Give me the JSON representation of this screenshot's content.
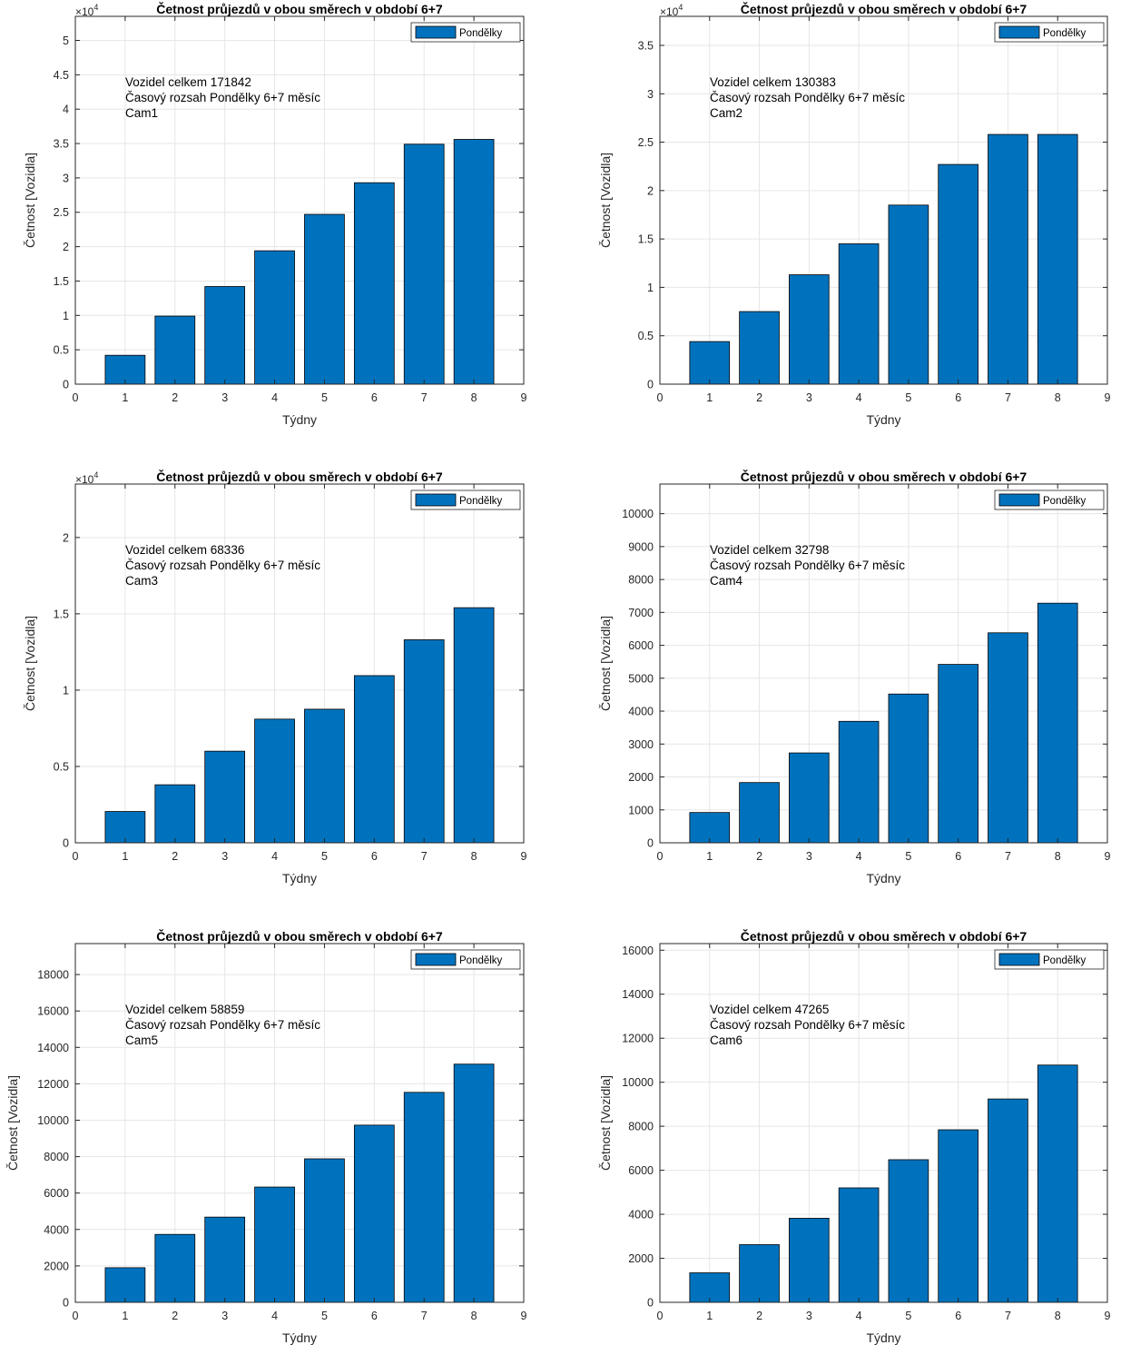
{
  "chart_data": [
    {
      "type": "bar",
      "title": "Četnost průjezdů v obou směrech v období 6+7",
      "xlabel": "Týdny",
      "ylabel": "Četnost [Vozidla]",
      "categories": [
        1,
        2,
        3,
        4,
        5,
        6,
        7,
        8
      ],
      "series": [
        {
          "name": "Pondělky",
          "values": [
            4200,
            9900,
            14200,
            19400,
            24700,
            29300,
            34900,
            35600
          ]
        }
      ],
      "xlim": [
        0,
        9
      ],
      "xticks": [
        0,
        1,
        2,
        3,
        4,
        5,
        6,
        7,
        8,
        9
      ],
      "ylim": [
        0,
        53500
      ],
      "yticks": [
        0,
        5000,
        10000,
        15000,
        20000,
        25000,
        30000,
        35000,
        40000,
        45000,
        50000
      ],
      "ytick_labels": [
        "0",
        "0.5",
        "1",
        "1.5",
        "2",
        "2.5",
        "3",
        "3.5",
        "4",
        "4.5",
        "5"
      ],
      "y_exponent_label": "×10",
      "y_exponent": "4",
      "annotation": [
        "Vozidel celkem 171842",
        "Časový rozsah Pondělky 6+7 měsíc",
        "Cam1"
      ],
      "legend_position": "top-right",
      "grid": true,
      "color": "#0072bd"
    },
    {
      "type": "bar",
      "title": "Četnost průjezdů v obou směrech v období 6+7",
      "xlabel": "Týdny",
      "ylabel": "Četnost [Vozidla]",
      "categories": [
        1,
        2,
        3,
        4,
        5,
        6,
        7,
        8
      ],
      "series": [
        {
          "name": "Pondělky",
          "values": [
            4400,
            7500,
            11300,
            14500,
            18500,
            22700,
            25800,
            25800
          ]
        }
      ],
      "xlim": [
        0,
        9
      ],
      "xticks": [
        0,
        1,
        2,
        3,
        4,
        5,
        6,
        7,
        8,
        9
      ],
      "ylim": [
        0,
        38000
      ],
      "yticks": [
        0,
        5000,
        10000,
        15000,
        20000,
        25000,
        30000,
        35000
      ],
      "ytick_labels": [
        "0",
        "0.5",
        "1",
        "1.5",
        "2",
        "2.5",
        "3",
        "3.5"
      ],
      "y_exponent_label": "×10",
      "y_exponent": "4",
      "annotation": [
        "Vozidel celkem 130383",
        "Časový rozsah Pondělky 6+7 měsíc",
        "Cam2"
      ],
      "legend_position": "top-right",
      "grid": true,
      "color": "#0072bd"
    },
    {
      "type": "bar",
      "title": "Četnost průjezdů v obou směrech v období 6+7",
      "xlabel": "Týdny",
      "ylabel": "Četnost [Vozidla]",
      "categories": [
        1,
        2,
        3,
        4,
        5,
        6,
        7,
        8
      ],
      "series": [
        {
          "name": "Pondělky",
          "values": [
            2050,
            3800,
            6000,
            8100,
            8750,
            10950,
            13300,
            15400
          ]
        }
      ],
      "xlim": [
        0,
        9
      ],
      "xticks": [
        0,
        1,
        2,
        3,
        4,
        5,
        6,
        7,
        8,
        9
      ],
      "ylim": [
        0,
        23500
      ],
      "yticks": [
        0,
        5000,
        10000,
        15000,
        20000
      ],
      "ytick_labels": [
        "0",
        "0.5",
        "1",
        "1.5",
        "2"
      ],
      "y_exponent_label": "×10",
      "y_exponent": "4",
      "annotation": [
        "Vozidel celkem 68336",
        "Časový rozsah Pondělky 6+7 měsíc",
        "Cam3"
      ],
      "legend_position": "top-right",
      "grid": true,
      "color": "#0072bd"
    },
    {
      "type": "bar",
      "title": "Četnost průjezdů v obou směrech v období 6+7",
      "xlabel": "Týdny",
      "ylabel": "Četnost [Vozidla]",
      "categories": [
        1,
        2,
        3,
        4,
        5,
        6,
        7,
        8
      ],
      "series": [
        {
          "name": "Pondělky",
          "values": [
            920,
            1830,
            2730,
            3690,
            4520,
            5420,
            6380,
            7280
          ]
        }
      ],
      "xlim": [
        0,
        9
      ],
      "xticks": [
        0,
        1,
        2,
        3,
        4,
        5,
        6,
        7,
        8,
        9
      ],
      "ylim": [
        0,
        10900
      ],
      "yticks": [
        0,
        1000,
        2000,
        3000,
        4000,
        5000,
        6000,
        7000,
        8000,
        9000,
        10000
      ],
      "ytick_labels": [
        "0",
        "1000",
        "2000",
        "3000",
        "4000",
        "5000",
        "6000",
        "7000",
        "8000",
        "9000",
        "10000"
      ],
      "y_exponent_label": "",
      "y_exponent": "",
      "annotation": [
        "Vozidel celkem 32798",
        "Časový rozsah Pondělky 6+7 měsíc",
        "Cam4"
      ],
      "legend_position": "top-right",
      "grid": true,
      "color": "#0072bd"
    },
    {
      "type": "bar",
      "title": "Četnost průjezdů v obou směrech v období 6+7",
      "xlabel": "Týdny",
      "ylabel": "Četnost [Vozidla]",
      "categories": [
        1,
        2,
        3,
        4,
        5,
        6,
        7,
        8
      ],
      "series": [
        {
          "name": "Pondělky",
          "values": [
            1900,
            3730,
            4680,
            6330,
            7880,
            9730,
            11530,
            13080
          ]
        }
      ],
      "xlim": [
        0,
        9
      ],
      "xticks": [
        0,
        1,
        2,
        3,
        4,
        5,
        6,
        7,
        8,
        9
      ],
      "ylim": [
        0,
        19700
      ],
      "yticks": [
        0,
        2000,
        4000,
        6000,
        8000,
        10000,
        12000,
        14000,
        16000,
        18000
      ],
      "ytick_labels": [
        "0",
        "2000",
        "4000",
        "6000",
        "8000",
        "10000",
        "12000",
        "14000",
        "16000",
        "18000"
      ],
      "y_exponent_label": "",
      "y_exponent": "",
      "annotation": [
        "Vozidel celkem 58859",
        "Časový rozsah Pondělky 6+7 měsíc",
        "Cam5"
      ],
      "legend_position": "top-right",
      "grid": true,
      "color": "#0072bd"
    },
    {
      "type": "bar",
      "title": "Četnost průjezdů v obou směrech v období 6+7",
      "xlabel": "Týdny",
      "ylabel": "Četnost [Vozidla]",
      "categories": [
        1,
        2,
        3,
        4,
        5,
        6,
        7,
        8
      ],
      "series": [
        {
          "name": "Pondělky",
          "values": [
            1340,
            2620,
            3820,
            5200,
            6480,
            7840,
            9240,
            10780
          ]
        }
      ],
      "xlim": [
        0,
        9
      ],
      "xticks": [
        0,
        1,
        2,
        3,
        4,
        5,
        6,
        7,
        8,
        9
      ],
      "ylim": [
        0,
        16300
      ],
      "yticks": [
        0,
        2000,
        4000,
        6000,
        8000,
        10000,
        12000,
        14000,
        16000
      ],
      "ytick_labels": [
        "0",
        "2000",
        "4000",
        "6000",
        "8000",
        "10000",
        "12000",
        "14000",
        "16000"
      ],
      "y_exponent_label": "",
      "y_exponent": "",
      "annotation": [
        "Vozidel celkem 47265",
        "Časový rozsah Pondělky 6+7 měsíc",
        "Cam6"
      ],
      "legend_position": "top-right",
      "grid": true,
      "color": "#0072bd"
    }
  ]
}
